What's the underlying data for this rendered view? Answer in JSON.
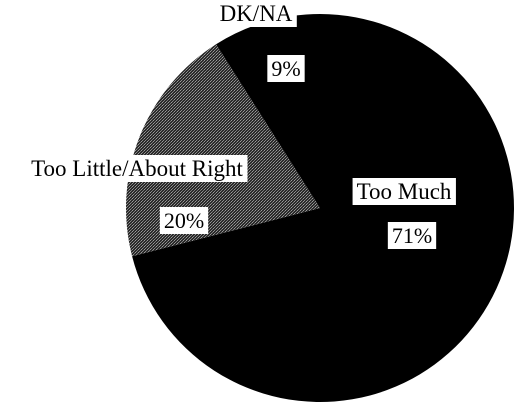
{
  "chart_data": {
    "type": "pie",
    "title": "",
    "slices": [
      {
        "label": "Too Much",
        "value": 71,
        "value_label": "71%",
        "color": "#000000",
        "pattern": "solid"
      },
      {
        "label": "Too Little/About Right",
        "value": 20,
        "value_label": "20%",
        "color": "#3a3a3a",
        "pattern": "dotted-gray"
      },
      {
        "label": "DK/NA",
        "value": 9,
        "value_label": "9%",
        "color": "#000000",
        "pattern": "solid"
      }
    ],
    "legend": "none",
    "labels_on_slices": true
  }
}
